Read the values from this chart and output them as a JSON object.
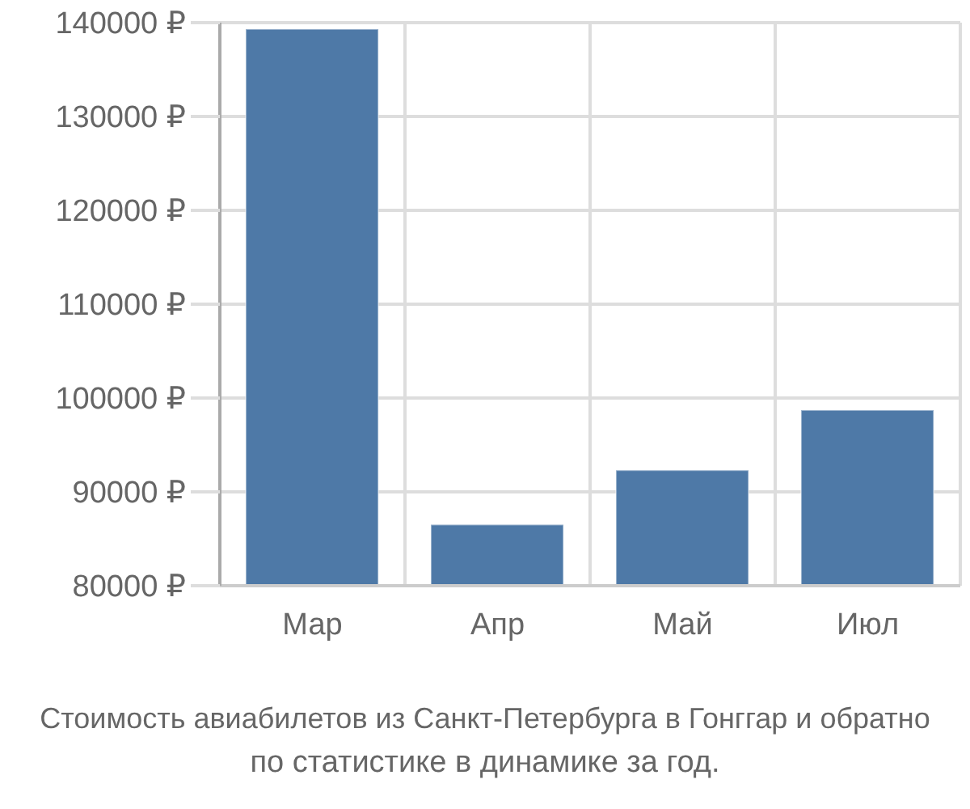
{
  "chart_data": {
    "type": "bar",
    "categories": [
      "Мар",
      "Апр",
      "Май",
      "Июл"
    ],
    "values": [
      139300,
      86500,
      92300,
      98700
    ],
    "color": "#4e79a7",
    "ylim": [
      80000,
      140000
    ],
    "yticks": [
      {
        "value": 80000,
        "label": "80000 ₽"
      },
      {
        "value": 90000,
        "label": "90000 ₽"
      },
      {
        "value": 100000,
        "label": "100000 ₽"
      },
      {
        "value": 110000,
        "label": "110000 ₽"
      },
      {
        "value": 120000,
        "label": "120000 ₽"
      },
      {
        "value": 130000,
        "label": "130000 ₽"
      },
      {
        "value": 140000,
        "label": "140000 ₽"
      }
    ],
    "grid": true,
    "annotations": [
      "Стоимость авиабилетов из Санкт-Петербурга в Гонггар и обратно",
      "по статистике в динамике за год."
    ]
  }
}
